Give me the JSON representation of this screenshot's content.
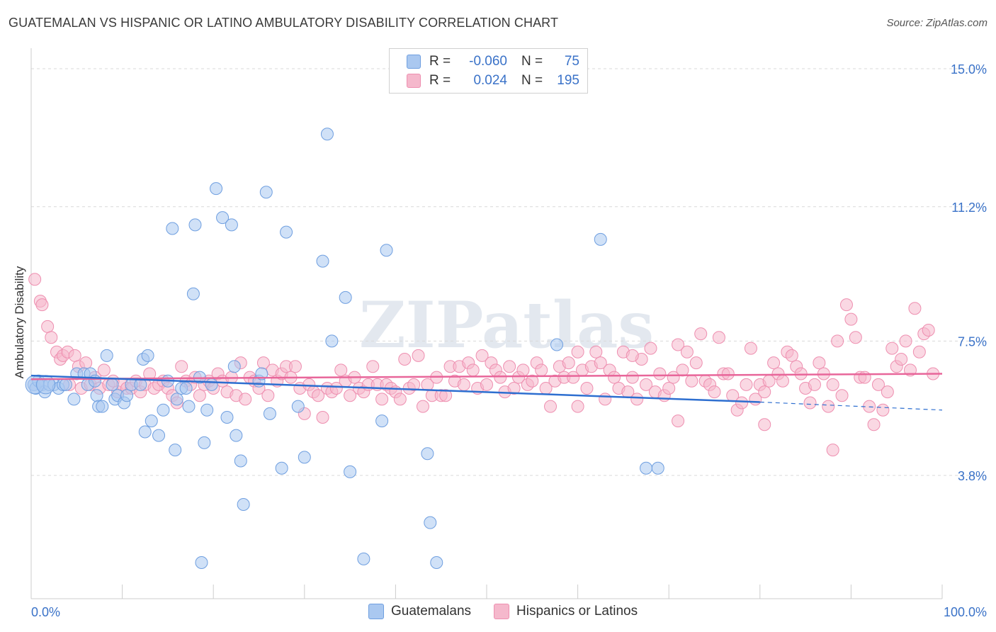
{
  "title": "GUATEMALAN VS HISPANIC OR LATINO AMBULATORY DISABILITY CORRELATION CHART",
  "source": "Source: ZipAtlas.com",
  "watermark": "ZIPatlas",
  "legend": {
    "rows": [
      {
        "r_label": "R =",
        "r_value": "-0.060",
        "n_label": "N =",
        "n_value": "75",
        "color": "#aac8f0"
      },
      {
        "r_label": "R =",
        "r_value": "0.024",
        "n_label": "N =",
        "n_value": "195",
        "color": "#f5b8cc"
      }
    ]
  },
  "bottom_legend": [
    {
      "label": "Guatemalans",
      "color": "#aac8f0"
    },
    {
      "label": "Hispanics or Latinos",
      "color": "#f5b8cc"
    }
  ],
  "chart_data": {
    "type": "scatter",
    "title": "GUATEMALAN VS HISPANIC OR LATINO AMBULATORY DISABILITY CORRELATION CHART",
    "ylabel": "Ambulatory Disability",
    "xlabel": "",
    "xlim": [
      0,
      100
    ],
    "ylim": [
      0,
      15.5
    ],
    "x_tick_labels": [
      "0.0%",
      "100.0%"
    ],
    "y_ticks": [
      {
        "value": 3.8,
        "label": "3.8%"
      },
      {
        "value": 7.5,
        "label": "7.5%"
      },
      {
        "value": 11.2,
        "label": "11.2%"
      },
      {
        "value": 15.0,
        "label": "15.0%"
      }
    ],
    "series": [
      {
        "name": "Guatemalans",
        "color": "#6f9fe0",
        "fill": "#aac8f0",
        "trend": {
          "x0": 0,
          "y0": 6.55,
          "x1": 80,
          "y1": 5.82,
          "dash_to_x": 100,
          "dash_y": 5.6
        },
        "points": [
          [
            0.3,
            6.3
          ],
          [
            0.5,
            6.2
          ],
          [
            0.8,
            6.4
          ],
          [
            1.2,
            6.3
          ],
          [
            1.5,
            6.1
          ],
          [
            2.0,
            6.3
          ],
          [
            2.5,
            6.3
          ],
          [
            3.0,
            6.2
          ],
          [
            3.5,
            6.3
          ],
          [
            3.8,
            6.3
          ],
          [
            4.7,
            5.9
          ],
          [
            5.0,
            6.6
          ],
          [
            5.8,
            6.6
          ],
          [
            6.2,
            6.3
          ],
          [
            6.5,
            6.6
          ],
          [
            7.0,
            6.4
          ],
          [
            7.2,
            6.0
          ],
          [
            7.4,
            5.7
          ],
          [
            7.8,
            5.7
          ],
          [
            8.3,
            7.1
          ],
          [
            8.9,
            6.3
          ],
          [
            9.2,
            5.9
          ],
          [
            9.5,
            6.0
          ],
          [
            10.2,
            5.8
          ],
          [
            10.5,
            6.0
          ],
          [
            11.0,
            6.3
          ],
          [
            12.0,
            6.3
          ],
          [
            12.3,
            7.0
          ],
          [
            12.5,
            5.0
          ],
          [
            12.8,
            7.1
          ],
          [
            13.2,
            5.3
          ],
          [
            14.0,
            4.9
          ],
          [
            14.5,
            5.6
          ],
          [
            15.0,
            6.4
          ],
          [
            15.5,
            10.6
          ],
          [
            15.8,
            4.5
          ],
          [
            16.0,
            5.9
          ],
          [
            16.5,
            6.2
          ],
          [
            17.0,
            6.2
          ],
          [
            17.3,
            5.7
          ],
          [
            17.8,
            8.8
          ],
          [
            18.0,
            10.7
          ],
          [
            18.5,
            6.5
          ],
          [
            18.7,
            1.4
          ],
          [
            19.0,
            4.7
          ],
          [
            19.3,
            5.6
          ],
          [
            19.8,
            6.3
          ],
          [
            20.3,
            11.7
          ],
          [
            21.0,
            10.9
          ],
          [
            21.5,
            5.4
          ],
          [
            22.0,
            10.7
          ],
          [
            22.3,
            6.8
          ],
          [
            22.5,
            4.9
          ],
          [
            23.0,
            4.2
          ],
          [
            23.3,
            3.0
          ],
          [
            25.0,
            6.4
          ],
          [
            25.3,
            6.6
          ],
          [
            25.8,
            11.6
          ],
          [
            26.2,
            5.5
          ],
          [
            27.5,
            4.0
          ],
          [
            28.0,
            10.5
          ],
          [
            29.3,
            5.7
          ],
          [
            30.0,
            4.3
          ],
          [
            32.0,
            9.7
          ],
          [
            32.5,
            13.2
          ],
          [
            33.0,
            7.5
          ],
          [
            34.5,
            8.7
          ],
          [
            35.0,
            3.9
          ],
          [
            36.5,
            1.5
          ],
          [
            38.5,
            5.3
          ],
          [
            39.0,
            10.0
          ],
          [
            43.5,
            4.4
          ],
          [
            43.8,
            2.5
          ],
          [
            44.5,
            1.4
          ],
          [
            57.7,
            7.4
          ],
          [
            62.5,
            10.3
          ],
          [
            67.5,
            4.0
          ],
          [
            68.8,
            4.0
          ]
        ],
        "big_points": [
          [
            0.4,
            6.3
          ],
          [
            1.6,
            6.3
          ]
        ]
      },
      {
        "name": "Hispanics or Latinos",
        "color": "#ee8fb0",
        "fill": "#f5b8cc",
        "trend": {
          "x0": 0,
          "y0": 6.45,
          "x1": 100,
          "y1": 6.6
        },
        "points": [
          [
            0.4,
            9.2
          ],
          [
            1.0,
            8.6
          ],
          [
            1.2,
            8.5
          ],
          [
            1.8,
            7.9
          ],
          [
            2.2,
            7.6
          ],
          [
            2.8,
            7.2
          ],
          [
            3.2,
            7.0
          ],
          [
            3.5,
            7.1
          ],
          [
            4.0,
            7.2
          ],
          [
            4.2,
            6.3
          ],
          [
            4.8,
            7.1
          ],
          [
            5.2,
            6.8
          ],
          [
            5.5,
            6.2
          ],
          [
            6.0,
            6.9
          ],
          [
            6.5,
            6.3
          ],
          [
            7.0,
            6.5
          ],
          [
            7.5,
            6.2
          ],
          [
            8.0,
            6.7
          ],
          [
            8.5,
            6.3
          ],
          [
            9.0,
            6.4
          ],
          [
            9.5,
            6.1
          ],
          [
            10.0,
            6.3
          ],
          [
            10.5,
            6.2
          ],
          [
            11.0,
            6.2
          ],
          [
            11.5,
            6.4
          ],
          [
            12.0,
            6.1
          ],
          [
            12.5,
            6.3
          ],
          [
            13.0,
            6.6
          ],
          [
            13.5,
            6.2
          ],
          [
            14.0,
            6.3
          ],
          [
            14.5,
            6.4
          ],
          [
            15.0,
            6.2
          ],
          [
            15.5,
            6.0
          ],
          [
            16.0,
            5.8
          ],
          [
            16.5,
            6.8
          ],
          [
            17.0,
            6.4
          ],
          [
            17.5,
            6.3
          ],
          [
            18.0,
            6.5
          ],
          [
            18.5,
            6.0
          ],
          [
            19.0,
            6.3
          ],
          [
            19.5,
            6.4
          ],
          [
            20.0,
            6.2
          ],
          [
            20.5,
            6.6
          ],
          [
            21.0,
            6.4
          ],
          [
            21.5,
            6.1
          ],
          [
            22.0,
            6.5
          ],
          [
            22.5,
            6.0
          ],
          [
            23.0,
            6.9
          ],
          [
            23.5,
            5.9
          ],
          [
            24.0,
            6.5
          ],
          [
            24.5,
            6.4
          ],
          [
            25.0,
            6.2
          ],
          [
            25.5,
            6.9
          ],
          [
            26.0,
            6.0
          ],
          [
            26.5,
            6.7
          ],
          [
            27.0,
            6.4
          ],
          [
            27.5,
            6.6
          ],
          [
            28.0,
            6.8
          ],
          [
            28.5,
            6.5
          ],
          [
            29.0,
            6.8
          ],
          [
            29.5,
            6.2
          ],
          [
            30.0,
            5.5
          ],
          [
            30.5,
            6.3
          ],
          [
            31.0,
            6.1
          ],
          [
            31.5,
            6.0
          ],
          [
            32.0,
            5.4
          ],
          [
            32.5,
            6.2
          ],
          [
            33.0,
            6.1
          ],
          [
            33.5,
            6.2
          ],
          [
            34.0,
            6.7
          ],
          [
            34.5,
            6.4
          ],
          [
            35.0,
            6.0
          ],
          [
            35.5,
            6.5
          ],
          [
            36.0,
            6.2
          ],
          [
            36.5,
            6.1
          ],
          [
            37.0,
            6.3
          ],
          [
            37.5,
            6.8
          ],
          [
            38.0,
            6.3
          ],
          [
            38.5,
            5.9
          ],
          [
            39.0,
            6.3
          ],
          [
            39.5,
            6.2
          ],
          [
            40.0,
            6.1
          ],
          [
            40.5,
            5.9
          ],
          [
            41.0,
            7.0
          ],
          [
            41.5,
            6.2
          ],
          [
            42.0,
            6.3
          ],
          [
            42.5,
            7.1
          ],
          [
            43.0,
            5.7
          ],
          [
            43.5,
            6.3
          ],
          [
            44.0,
            6.0
          ],
          [
            44.5,
            6.5
          ],
          [
            45.0,
            6.0
          ],
          [
            45.5,
            6.0
          ],
          [
            46.0,
            6.8
          ],
          [
            46.5,
            6.4
          ],
          [
            47.0,
            6.8
          ],
          [
            47.5,
            6.3
          ],
          [
            48.0,
            6.9
          ],
          [
            48.5,
            6.7
          ],
          [
            49.0,
            6.2
          ],
          [
            49.5,
            7.1
          ],
          [
            50.0,
            6.3
          ],
          [
            50.5,
            6.9
          ],
          [
            51.0,
            6.7
          ],
          [
            51.5,
            6.5
          ],
          [
            52.0,
            6.1
          ],
          [
            52.5,
            6.8
          ],
          [
            53.0,
            6.2
          ],
          [
            53.5,
            6.5
          ],
          [
            54.0,
            6.7
          ],
          [
            54.5,
            6.3
          ],
          [
            55.0,
            6.4
          ],
          [
            55.5,
            6.9
          ],
          [
            56.0,
            6.7
          ],
          [
            56.5,
            6.2
          ],
          [
            57.0,
            5.7
          ],
          [
            57.5,
            6.4
          ],
          [
            58.0,
            6.8
          ],
          [
            58.5,
            6.5
          ],
          [
            59.0,
            6.9
          ],
          [
            59.5,
            6.5
          ],
          [
            60.0,
            5.7
          ],
          [
            60.5,
            6.7
          ],
          [
            61.0,
            6.2
          ],
          [
            61.5,
            6.8
          ],
          [
            62.0,
            7.2
          ],
          [
            62.5,
            6.9
          ],
          [
            63.0,
            5.9
          ],
          [
            63.5,
            6.7
          ],
          [
            64.0,
            6.5
          ],
          [
            64.5,
            6.2
          ],
          [
            65.0,
            7.2
          ],
          [
            65.5,
            6.1
          ],
          [
            66.0,
            6.5
          ],
          [
            66.5,
            5.9
          ],
          [
            67.0,
            7.0
          ],
          [
            67.5,
            6.3
          ],
          [
            68.0,
            7.3
          ],
          [
            68.5,
            6.1
          ],
          [
            69.0,
            6.6
          ],
          [
            69.5,
            6.0
          ],
          [
            70.0,
            6.2
          ],
          [
            70.5,
            6.5
          ],
          [
            71.0,
            7.4
          ],
          [
            71.5,
            6.7
          ],
          [
            72.0,
            7.2
          ],
          [
            72.5,
            6.4
          ],
          [
            73.0,
            6.9
          ],
          [
            73.5,
            7.7
          ],
          [
            74.0,
            6.4
          ],
          [
            74.5,
            6.3
          ],
          [
            75.0,
            6.1
          ],
          [
            75.5,
            7.6
          ],
          [
            76.0,
            6.6
          ],
          [
            76.5,
            6.6
          ],
          [
            77.0,
            6.0
          ],
          [
            77.5,
            5.6
          ],
          [
            78.0,
            5.8
          ],
          [
            78.5,
            6.3
          ],
          [
            79.0,
            7.3
          ],
          [
            79.5,
            5.9
          ],
          [
            80.0,
            6.3
          ],
          [
            80.5,
            6.1
          ],
          [
            81.0,
            6.4
          ],
          [
            81.5,
            6.9
          ],
          [
            82.0,
            6.6
          ],
          [
            82.5,
            6.4
          ],
          [
            83.0,
            7.2
          ],
          [
            83.5,
            7.1
          ],
          [
            84.0,
            6.8
          ],
          [
            84.5,
            6.6
          ],
          [
            85.0,
            6.2
          ],
          [
            85.5,
            5.8
          ],
          [
            86.0,
            6.3
          ],
          [
            86.5,
            6.9
          ],
          [
            87.0,
            6.6
          ],
          [
            87.5,
            5.7
          ],
          [
            88.0,
            6.3
          ],
          [
            88.5,
            7.5
          ],
          [
            89.0,
            6.0
          ],
          [
            89.5,
            8.5
          ],
          [
            90.0,
            8.1
          ],
          [
            90.5,
            7.6
          ],
          [
            91.0,
            6.5
          ],
          [
            91.5,
            6.5
          ],
          [
            92.0,
            5.7
          ],
          [
            92.5,
            5.2
          ],
          [
            93.0,
            6.3
          ],
          [
            93.5,
            5.6
          ],
          [
            94.0,
            6.1
          ],
          [
            94.5,
            7.3
          ],
          [
            95.0,
            6.8
          ],
          [
            95.5,
            7.0
          ],
          [
            96.0,
            7.5
          ],
          [
            96.5,
            6.7
          ],
          [
            97.0,
            8.4
          ],
          [
            97.5,
            7.2
          ],
          [
            98.0,
            7.7
          ],
          [
            98.5,
            7.8
          ],
          [
            99.0,
            6.6
          ],
          [
            60.0,
            7.2
          ],
          [
            66.0,
            7.1
          ],
          [
            71.0,
            5.3
          ],
          [
            80.5,
            5.2
          ],
          [
            88.0,
            4.5
          ]
        ]
      }
    ]
  }
}
